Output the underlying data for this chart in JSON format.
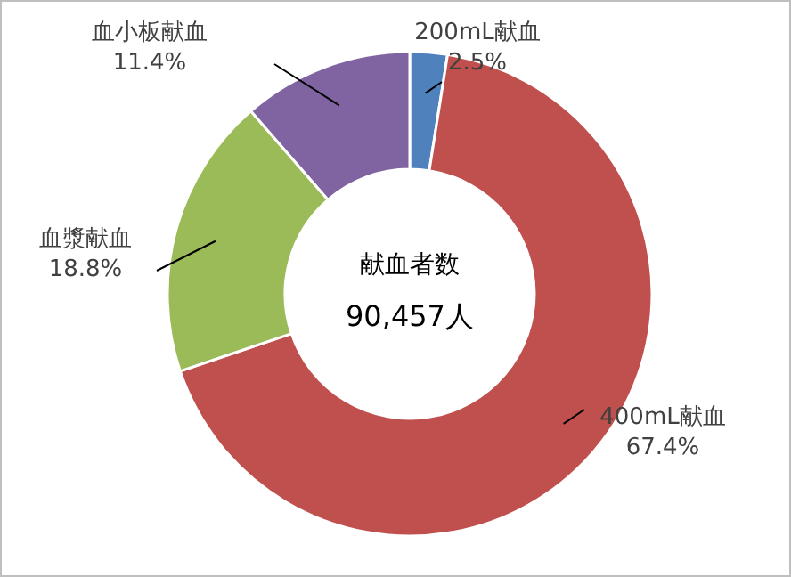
{
  "chart_data": {
    "type": "donut",
    "categories": [
      "200mL献血",
      "400mL献血",
      "血漿献血",
      "血小板献血"
    ],
    "values": [
      2.5,
      67.4,
      18.8,
      11.4
    ],
    "value_labels": [
      "2.5%",
      "67.4%",
      "18.8%",
      "11.4%"
    ],
    "colors": [
      "#4f81bd",
      "#c0504d",
      "#9bbb59",
      "#8064a2"
    ],
    "annotations": [
      "献血者数",
      "90,457人"
    ]
  }
}
